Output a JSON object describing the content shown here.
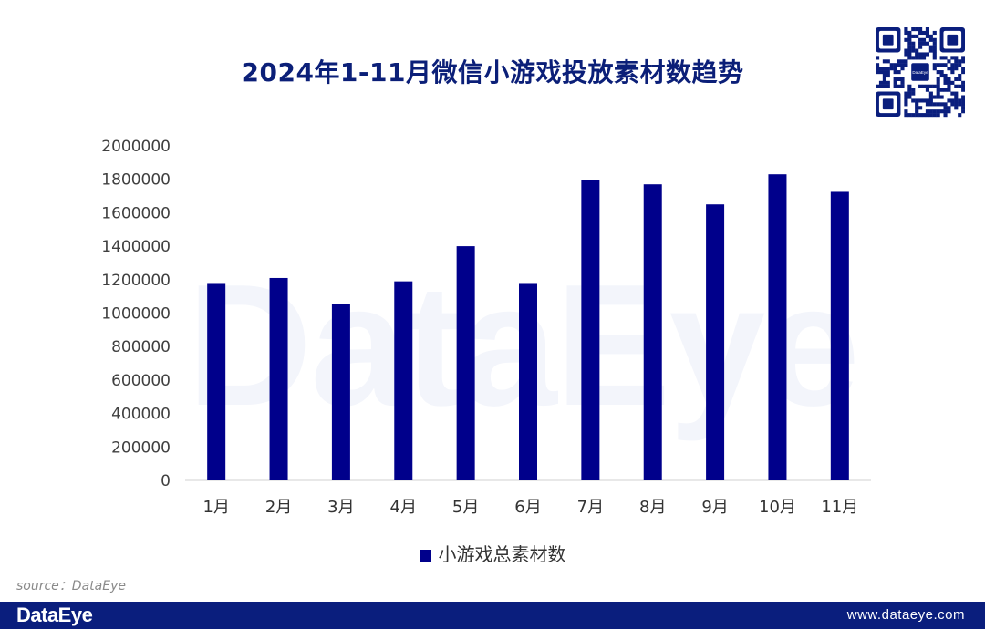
{
  "brand": {
    "name": "DataEye",
    "url": "www.dataeye.com",
    "source_label": "source：DataEye",
    "qr_logo_text": "DataEye"
  },
  "colors": {
    "bar": "#00008b",
    "title": "#0b1f78",
    "footer": "#0a1e7d"
  },
  "chart_data": {
    "type": "bar",
    "title": "2024年1-11月微信小游戏投放素材数趋势",
    "categories": [
      "1月",
      "2月",
      "3月",
      "4月",
      "5月",
      "6月",
      "7月",
      "8月",
      "9月",
      "10月",
      "11月"
    ],
    "series": [
      {
        "name": "小游戏总素材数",
        "values": [
          1180000,
          1210000,
          1055000,
          1190000,
          1400000,
          1180000,
          1795000,
          1770000,
          1650000,
          1830000,
          1725000
        ]
      }
    ],
    "ylim": [
      0,
      2000000
    ],
    "yticks": [
      "0",
      "200000",
      "400000",
      "600000",
      "800000",
      "1000000",
      "1200000",
      "1400000",
      "1600000",
      "1800000",
      "2000000"
    ],
    "grid": false,
    "legend": "bottom"
  }
}
